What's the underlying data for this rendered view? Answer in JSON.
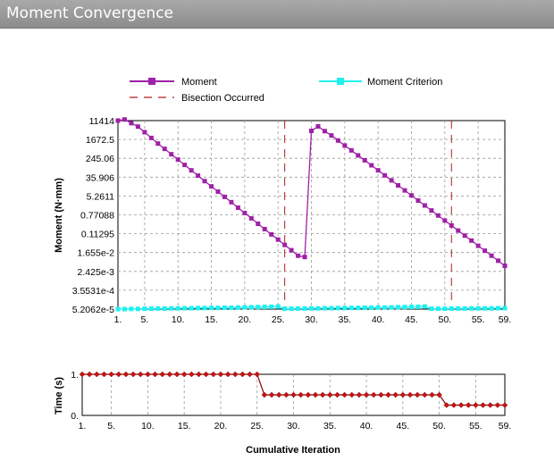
{
  "window": {
    "title": "Moment Convergence"
  },
  "colors": {
    "moment": "#a020a8",
    "criterion": "#20f0f0",
    "bisection": "#b02020",
    "time": "#cc1111",
    "time_line": "#8b0000",
    "grid": "#9a9a9a"
  },
  "legend": {
    "moment": "Moment",
    "criterion": "Moment Criterion",
    "bisection": "Bisection Occurred"
  },
  "chart_data": [
    {
      "type": "line",
      "scale": "log",
      "ylabel": "Moment (N·mm)",
      "y_ticks": [
        "11414",
        "1672.5",
        "245.06",
        "35.906",
        "5.2611",
        "0.77088",
        "0.11295",
        "1.655e-2",
        "2.425e-3",
        "3.5531e-4",
        "5.2062e-5"
      ],
      "x_ticks": [
        "1.",
        "5.",
        "10.",
        "15.",
        "20.",
        "25.",
        "30.",
        "35.",
        "40.",
        "45.",
        "50.",
        "55.",
        "59."
      ],
      "bisection_iterations": [
        26,
        51
      ],
      "series": [
        {
          "name": "Moment",
          "x": [
            1,
            2,
            3,
            4,
            5,
            6,
            7,
            8,
            9,
            10,
            11,
            12,
            13,
            14,
            15,
            16,
            17,
            18,
            19,
            20,
            21,
            22,
            23,
            24,
            25,
            26,
            27,
            28,
            29,
            30,
            31,
            32,
            33,
            34,
            35,
            36,
            37,
            38,
            39,
            40,
            41,
            42,
            43,
            44,
            45,
            46,
            47,
            48,
            49,
            50,
            51,
            52,
            53,
            54,
            55,
            56,
            57,
            58,
            59
          ],
          "y": [
            11414,
            12800,
            8800,
            6200,
            3500,
            1950,
            1100,
            640,
            370,
            215,
            125,
            72,
            42,
            24,
            14,
            8.2,
            4.8,
            2.8,
            1.6,
            0.93,
            0.54,
            0.31,
            0.18,
            0.105,
            0.062,
            0.036,
            0.021,
            0.012,
            0.0105,
            4000,
            6300,
            3900,
            2500,
            1500,
            900,
            550,
            330,
            200,
            120,
            72,
            43,
            26,
            15.5,
            9.3,
            5.6,
            3.3,
            2.0,
            1.2,
            0.72,
            0.43,
            0.26,
            0.155,
            0.093,
            0.056,
            0.033,
            0.02,
            0.012,
            0.0072,
            0.0043
          ]
        },
        {
          "name": "Moment Criterion",
          "x": [
            1,
            2,
            3,
            4,
            5,
            6,
            7,
            8,
            9,
            10,
            11,
            12,
            13,
            14,
            15,
            16,
            17,
            18,
            19,
            20,
            21,
            22,
            23,
            24,
            25,
            26,
            27,
            28,
            29,
            30,
            31,
            32,
            33,
            34,
            35,
            36,
            37,
            38,
            39,
            40,
            41,
            42,
            43,
            44,
            45,
            46,
            47,
            48,
            49,
            50,
            51,
            52,
            53,
            54,
            55,
            56,
            57,
            58,
            59
          ],
          "y": [
            5.2e-05,
            5.2e-05,
            5.3e-05,
            5.3e-05,
            5.4e-05,
            5.4e-05,
            5.5e-05,
            5.5e-05,
            5.6e-05,
            5.6e-05,
            5.7e-05,
            5.7e-05,
            5.8e-05,
            5.8e-05,
            5.9e-05,
            5.9e-05,
            6e-05,
            6e-05,
            6.1e-05,
            6.2e-05,
            6.3e-05,
            6.4e-05,
            6.5e-05,
            6.6e-05,
            6.8e-05,
            5.4e-05,
            5.4e-05,
            5.5e-05,
            5.5e-05,
            5.6e-05,
            5.6e-05,
            5.7e-05,
            5.7e-05,
            5.8e-05,
            5.8e-05,
            5.9e-05,
            5.9e-05,
            6e-05,
            6e-05,
            6.1e-05,
            6.1e-05,
            6.2e-05,
            6.3e-05,
            6.4e-05,
            6.5e-05,
            6.6e-05,
            6.8e-05,
            5.4e-05,
            5.4e-05,
            5.4e-05,
            5.5e-05,
            5.5e-05,
            5.5e-05,
            5.6e-05,
            5.6e-05,
            5.6e-05,
            5.6e-05,
            5.7e-05,
            5.7e-05
          ]
        }
      ]
    },
    {
      "type": "line",
      "ylabel": "Time (s)",
      "xlabel": "Cumulative Iteration",
      "y_ticks": [
        "1.",
        "0."
      ],
      "x_ticks": [
        "1.",
        "5.",
        "10.",
        "15.",
        "20.",
        "25.",
        "30.",
        "35.",
        "40.",
        "45.",
        "50.",
        "55.",
        "59."
      ],
      "ylim": [
        0,
        1
      ],
      "series": [
        {
          "x": [
            1,
            2,
            3,
            4,
            5,
            6,
            7,
            8,
            9,
            10,
            11,
            12,
            13,
            14,
            15,
            16,
            17,
            18,
            19,
            20,
            21,
            22,
            23,
            24,
            25,
            26,
            27,
            28,
            29,
            30,
            31,
            32,
            33,
            34,
            35,
            36,
            37,
            38,
            39,
            40,
            41,
            42,
            43,
            44,
            45,
            46,
            47,
            48,
            49,
            50,
            51,
            52,
            53,
            54,
            55,
            56,
            57,
            58,
            59
          ],
          "y": [
            1,
            1,
            1,
            1,
            1,
            1,
            1,
            1,
            1,
            1,
            1,
            1,
            1,
            1,
            1,
            1,
            1,
            1,
            1,
            1,
            1,
            1,
            1,
            1,
            1,
            0.5,
            0.5,
            0.5,
            0.5,
            0.5,
            0.5,
            0.5,
            0.5,
            0.5,
            0.5,
            0.5,
            0.5,
            0.5,
            0.5,
            0.5,
            0.5,
            0.5,
            0.5,
            0.5,
            0.5,
            0.5,
            0.5,
            0.5,
            0.5,
            0.5,
            0.25,
            0.25,
            0.25,
            0.25,
            0.25,
            0.25,
            0.25,
            0.25,
            0.25
          ]
        }
      ]
    }
  ]
}
